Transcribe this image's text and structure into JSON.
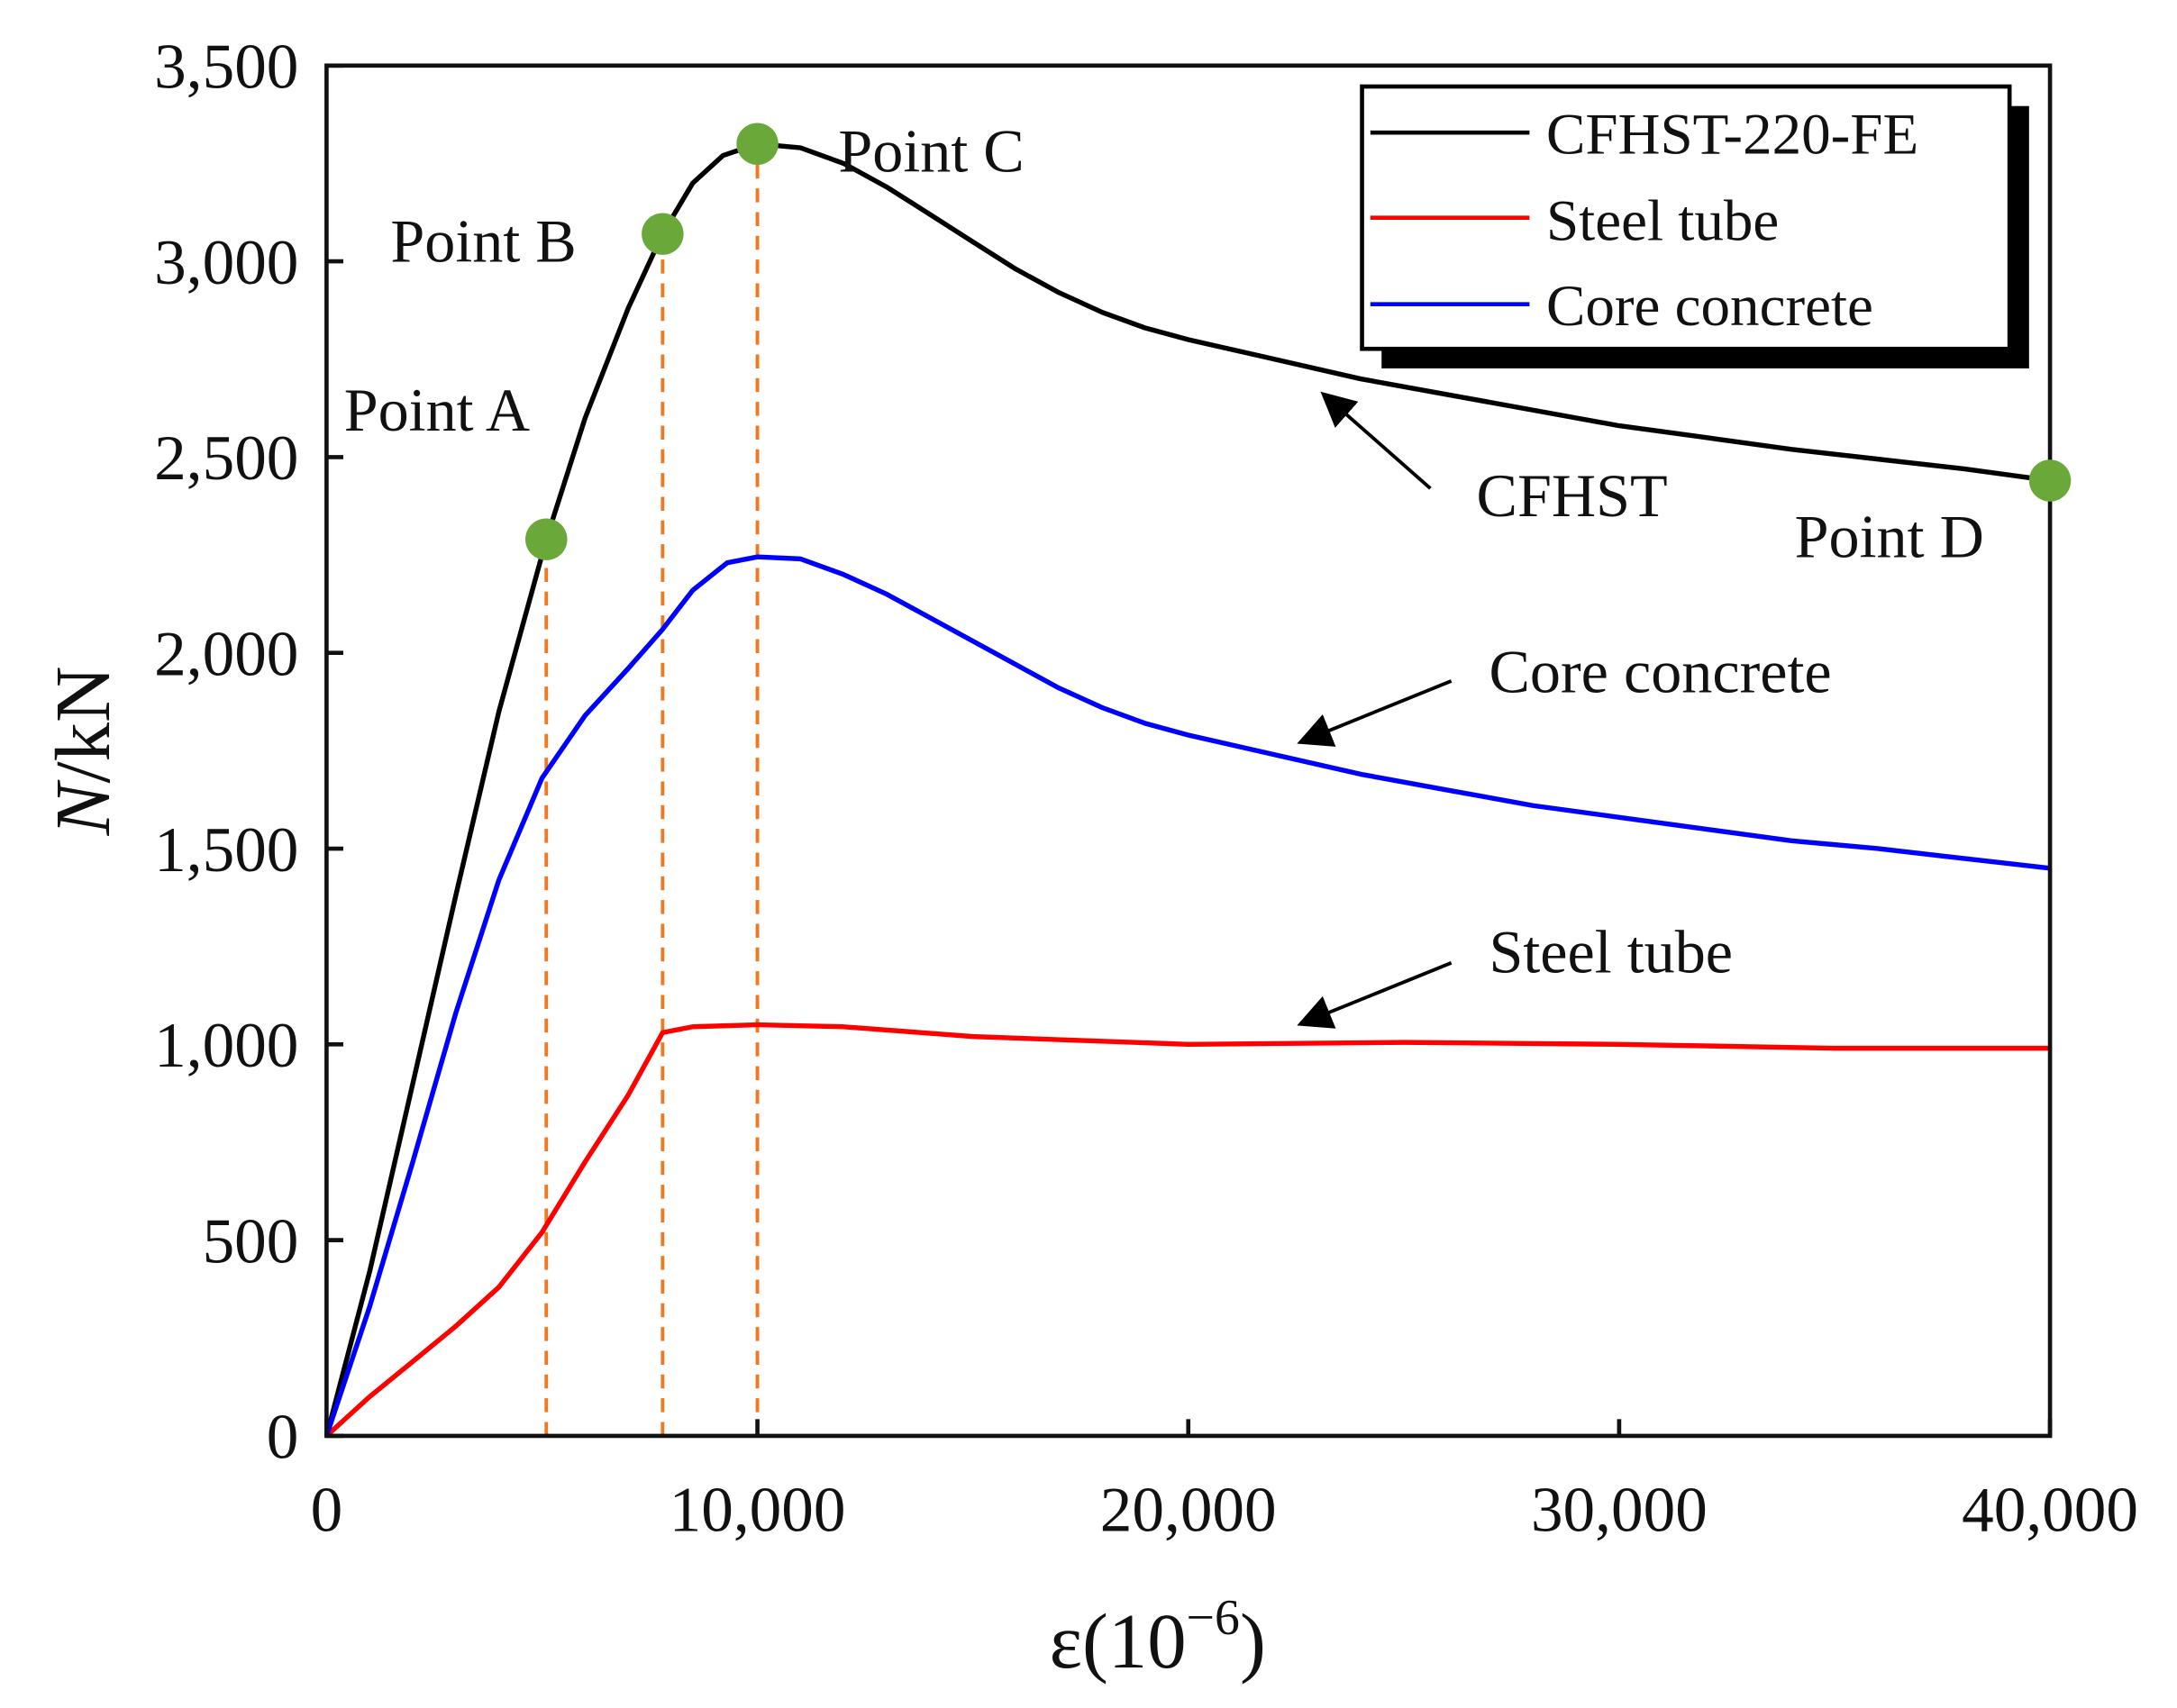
{
  "chart_data": {
    "type": "line",
    "xlabel": "ε(10",
    "xlabel_sup": "−6",
    "xlabel_close": ")",
    "ylabel_italic": "N",
    "ylabel_rest": "/kN",
    "xlim": [
      0,
      40000
    ],
    "ylim": [
      0,
      3500
    ],
    "xticks": [
      0,
      10000,
      20000,
      30000,
      40000
    ],
    "xtick_labels": [
      "0",
      "10,000",
      "20,000",
      "30,000",
      "40,000"
    ],
    "yticks": [
      0,
      500,
      1000,
      1500,
      2000,
      2500,
      3000,
      3500
    ],
    "ytick_labels": [
      "0",
      "500",
      "1,000",
      "1,500",
      "2,000",
      "2,500",
      "3,000",
      "3,500"
    ],
    "grid": false,
    "legend_placement": "top-right",
    "series": [
      {
        "name": "CFHST-220-FE",
        "color": "#000000",
        "x": [
          0,
          1000,
          2000,
          3000,
          4000,
          5100,
          6000,
          7000,
          7800,
          8500,
          9200,
          10000,
          11000,
          12000,
          13000,
          14000,
          15000,
          16000,
          17000,
          18000,
          19000,
          20000,
          22000,
          24000,
          26000,
          28000,
          30000,
          32000,
          34000,
          36000,
          38000,
          40000
        ],
        "y": [
          0,
          420,
          900,
          1380,
          1850,
          2290,
          2600,
          2880,
          3070,
          3200,
          3270,
          3300,
          3290,
          3250,
          3190,
          3120,
          3050,
          2980,
          2920,
          2870,
          2830,
          2800,
          2750,
          2700,
          2660,
          2620,
          2580,
          2550,
          2520,
          2495,
          2470,
          2440
        ]
      },
      {
        "name": "Steel tube",
        "color": "#ff0000",
        "x": [
          0,
          1000,
          2000,
          3000,
          4000,
          5000,
          6000,
          7000,
          7800,
          8500,
          10000,
          12000,
          15000,
          20000,
          25000,
          30000,
          35000,
          40000
        ],
        "y": [
          0,
          100,
          190,
          280,
          380,
          520,
          700,
          870,
          1030,
          1045,
          1050,
          1045,
          1020,
          1000,
          1005,
          1000,
          990,
          990
        ]
      },
      {
        "name": "Core concrete",
        "color": "#0000ff",
        "x": [
          0,
          1000,
          2000,
          3000,
          4000,
          5000,
          6000,
          7000,
          7800,
          8500,
          9300,
          10000,
          11000,
          12000,
          13000,
          14000,
          15000,
          16000,
          17000,
          18000,
          19000,
          20000,
          22000,
          24000,
          26000,
          28000,
          30000,
          32000,
          34000,
          36000,
          38000,
          40000
        ],
        "y": [
          0,
          330,
          700,
          1080,
          1420,
          1680,
          1840,
          1960,
          2060,
          2160,
          2230,
          2245,
          2240,
          2200,
          2150,
          2090,
          2030,
          1970,
          1910,
          1860,
          1820,
          1790,
          1740,
          1690,
          1650,
          1610,
          1580,
          1550,
          1520,
          1500,
          1475,
          1450
        ]
      }
    ],
    "key_points": [
      {
        "label": "Point A",
        "x": 5100,
        "y": 2290
      },
      {
        "label": "Point B",
        "x": 7800,
        "y": 3070
      },
      {
        "label": "Point C",
        "x": 10000,
        "y": 3300
      },
      {
        "label": "Point D",
        "x": 40000,
        "y": 2440
      }
    ],
    "key_point_color": "#6aa83a",
    "guide_line_color": "#f07820",
    "annotations": [
      "CFHST",
      "Core concrete",
      "Steel tube"
    ]
  }
}
